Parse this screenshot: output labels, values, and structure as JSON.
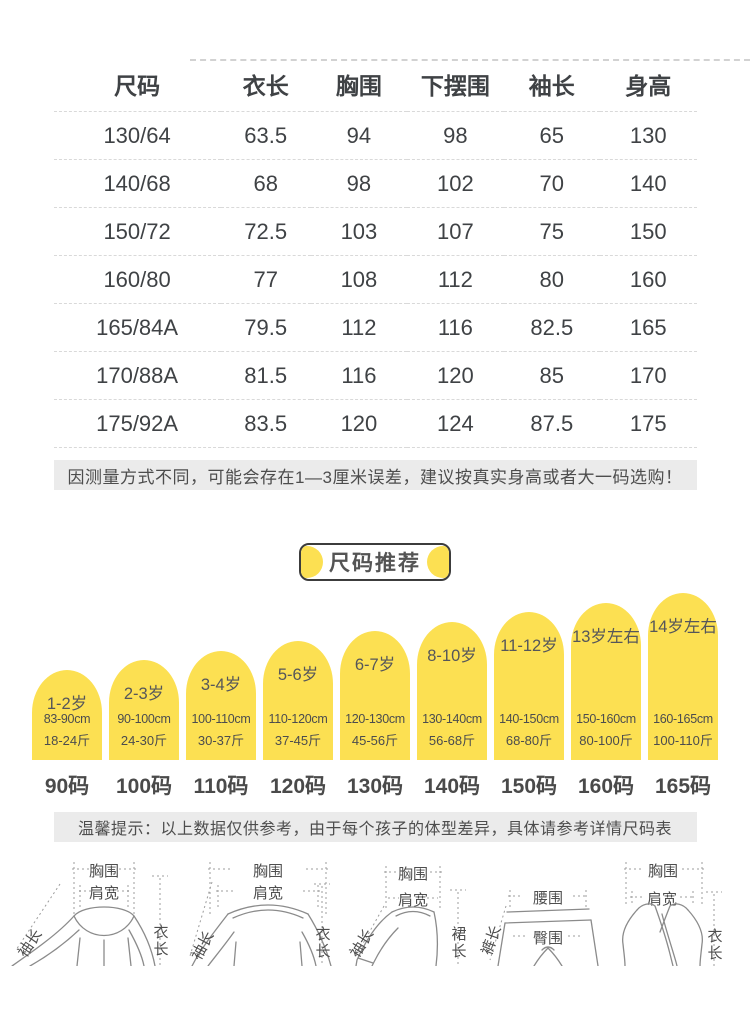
{
  "colors": {
    "accent_yellow": "#FCE052",
    "note_bg": "#EBEBEB",
    "text": "#3F4245"
  },
  "size_table": {
    "headers": [
      "尺码",
      "衣长",
      "胸围",
      "下摆围",
      "袖长",
      "身高"
    ],
    "rows": [
      [
        "130/64",
        "63.5",
        "94",
        "98",
        "65",
        "130"
      ],
      [
        "140/68",
        "68",
        "98",
        "102",
        "70",
        "140"
      ],
      [
        "150/72",
        "72.5",
        "103",
        "107",
        "75",
        "150"
      ],
      [
        "160/80",
        "77",
        "108",
        "112",
        "80",
        "160"
      ],
      [
        "165/84A",
        "79.5",
        "112",
        "116",
        "82.5",
        "165"
      ],
      [
        "170/88A",
        "81.5",
        "116",
        "120",
        "85",
        "170"
      ],
      [
        "175/92A",
        "83.5",
        "120",
        "124",
        "87.5",
        "175"
      ]
    ]
  },
  "notes": {
    "measure": "因测量方式不同，可能会存在1—3厘米误差，建议按真实身高或者大一码选购！",
    "reference": "温馨提示：以上数据仅供参考，由于每个孩子的体型差异，具体请参考详情尺码表"
  },
  "recommend": {
    "title": "尺码推荐",
    "items": [
      {
        "age": "1-2岁",
        "height": "83-90cm",
        "weight": "18-24斤",
        "size": "90码"
      },
      {
        "age": "2-3岁",
        "height": "90-100cm",
        "weight": "24-30斤",
        "size": "100码"
      },
      {
        "age": "3-4岁",
        "height": "100-110cm",
        "weight": "30-37斤",
        "size": "110码"
      },
      {
        "age": "5-6岁",
        "height": "110-120cm",
        "weight": "37-45斤",
        "size": "120码"
      },
      {
        "age": "6-7岁",
        "height": "120-130cm",
        "weight": "45-56斤",
        "size": "130码"
      },
      {
        "age": "8-10岁",
        "height": "130-140cm",
        "weight": "56-68斤",
        "size": "140码"
      },
      {
        "age": "11-12岁",
        "height": "140-150cm",
        "weight": "68-80斤",
        "size": "150码"
      },
      {
        "age": "13岁左右",
        "height": "150-160cm",
        "weight": "80-100斤",
        "size": "160码"
      },
      {
        "age": "14岁左右",
        "height": "160-165cm",
        "weight": "100-110斤",
        "size": "165码"
      }
    ]
  },
  "diagrams": {
    "jacket": {
      "chest": "胸围",
      "shoulder": "肩宽",
      "sleeve": "袖长",
      "length": "衣长"
    },
    "sweater": {
      "chest": "胸围",
      "shoulder": "肩宽",
      "sleeve": "袖长",
      "length": "衣长"
    },
    "dress": {
      "chest": "胸围",
      "shoulder": "肩宽",
      "sleeve": "袖长",
      "length": "裙长"
    },
    "pants": {
      "waist": "腰围",
      "hip": "臀围",
      "length": "裤长"
    },
    "vest": {
      "chest": "胸围",
      "shoulder": "肩宽",
      "length": "衣长"
    }
  }
}
